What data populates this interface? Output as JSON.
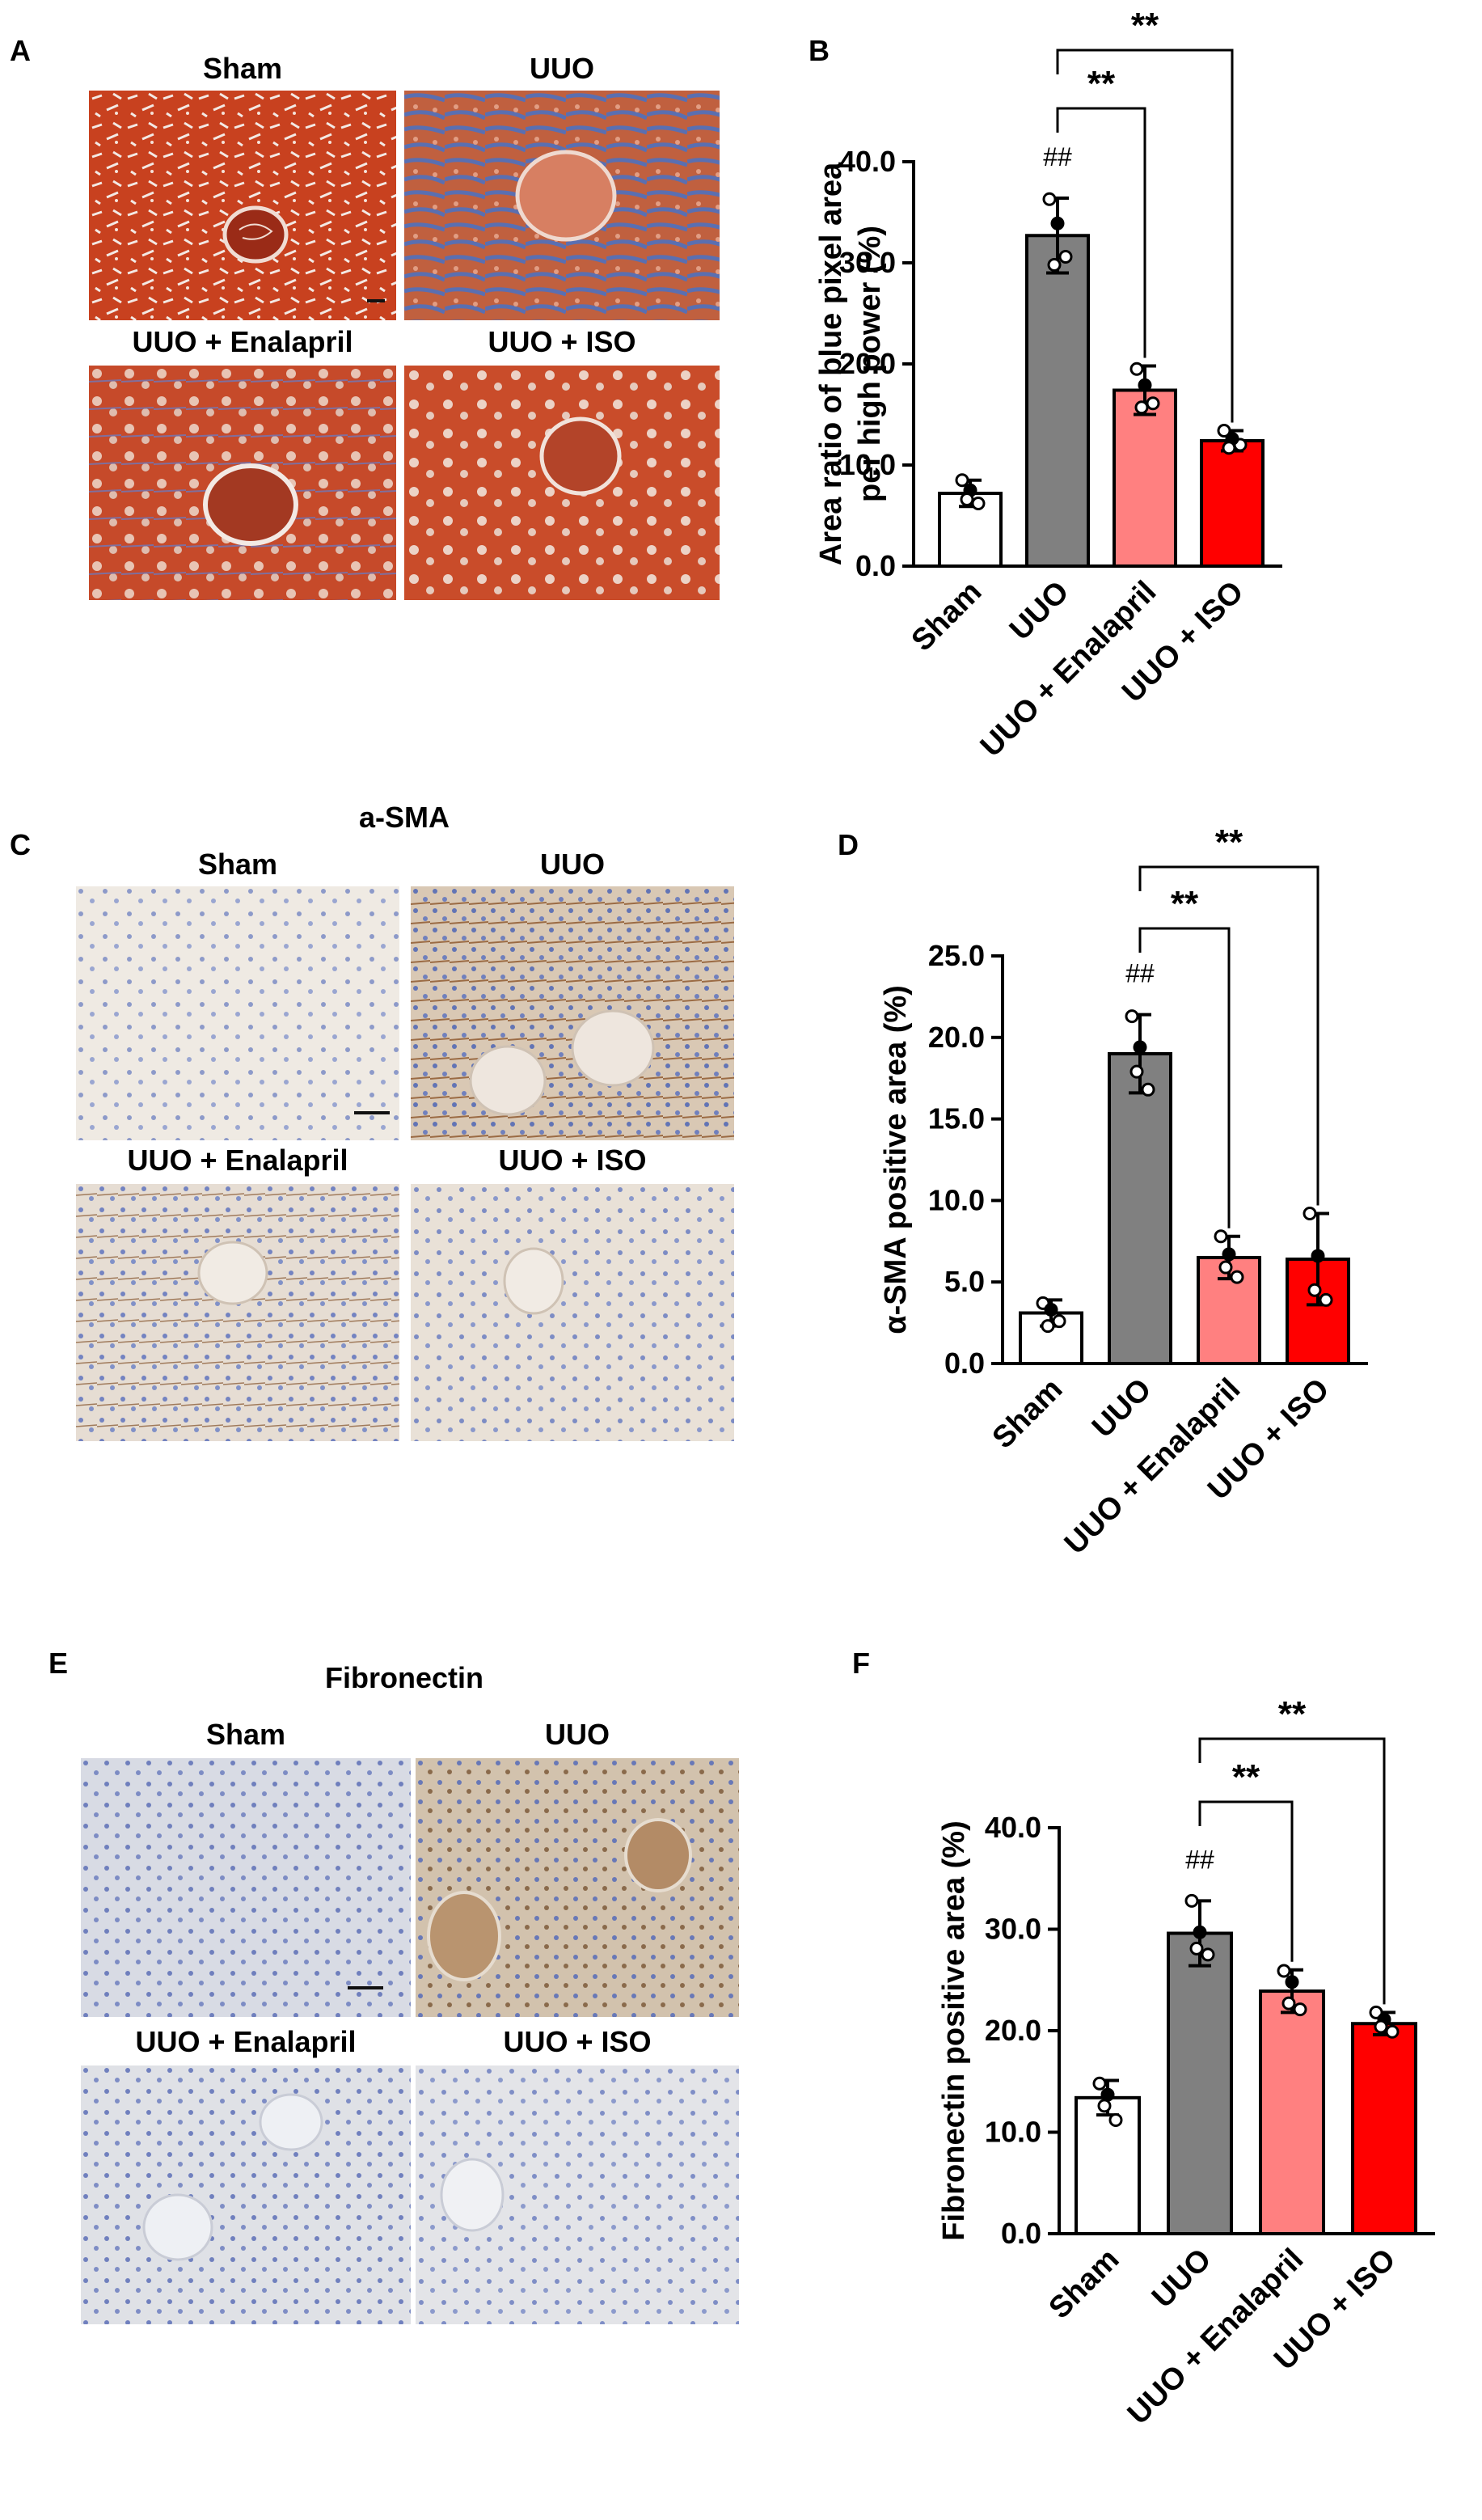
{
  "panels": {
    "A": {
      "letter": "A",
      "labels": [
        "Sham",
        "UUO",
        "UUO + Enalapril",
        "UUO + ISO"
      ]
    },
    "B": {
      "letter": "B"
    },
    "C": {
      "letter": "C",
      "title": "a-SMA",
      "labels": [
        "Sham",
        "UUO",
        "UUO + Enalapril",
        "UUO + ISO"
      ]
    },
    "D": {
      "letter": "D"
    },
    "E": {
      "letter": "E",
      "title": "Fibronectin",
      "labels": [
        "Sham",
        "UUO",
        "UUO + Enalapril",
        "UUO + ISO"
      ]
    },
    "F": {
      "letter": "F"
    }
  },
  "chart_data": [
    {
      "panel": "B",
      "type": "bar",
      "categories": [
        "Sham",
        "UUO",
        "UUO + Enalapril",
        "UUO + ISO"
      ],
      "values": [
        7.2,
        32.7,
        17.4,
        12.4
      ],
      "errors": [
        1.3,
        3.7,
        2.4,
        1.0
      ],
      "points": [
        [
          8.5,
          6.2,
          7.5,
          6.6
        ],
        [
          36.3,
          30.6,
          33.9,
          29.8
        ],
        [
          19.5,
          16.1,
          17.9,
          15.7
        ],
        [
          13.4,
          12.0,
          12.6,
          11.7
        ]
      ],
      "colors": [
        "#ffffff",
        "#808080",
        "#ff8080",
        "#ff0000"
      ],
      "ylabel": "Area ratio of blue pixel area per high power (%)",
      "ylim": [
        0,
        40
      ],
      "yticks": [
        "0.0",
        "10.0",
        "20.0",
        "30.0",
        "40.0"
      ],
      "annotations": {
        "hash": "##",
        "sig": "**"
      }
    },
    {
      "panel": "D",
      "type": "bar",
      "categories": [
        "Sham",
        "UUO",
        "UUO + Enalapril",
        "UUO + ISO"
      ],
      "values": [
        3.1,
        19.0,
        6.5,
        6.4
      ],
      "errors": [
        0.8,
        2.4,
        1.3,
        2.8
      ],
      "points": [
        [
          3.7,
          2.6,
          3.3,
          2.3
        ],
        [
          21.3,
          16.8,
          19.4,
          17.9
        ],
        [
          7.8,
          5.3,
          6.7,
          5.9
        ],
        [
          9.2,
          3.9,
          6.6,
          4.5
        ]
      ],
      "colors": [
        "#ffffff",
        "#808080",
        "#ff8080",
        "#ff0000"
      ],
      "ylabel": "α-SMA positive area (%)",
      "ylim": [
        0,
        25
      ],
      "yticks": [
        "0.0",
        "5.0",
        "10.0",
        "15.0",
        "20.0",
        "25.0"
      ],
      "annotations": {
        "hash": "##",
        "sig": "**"
      }
    },
    {
      "panel": "F",
      "type": "bar",
      "categories": [
        "Sham",
        "UUO",
        "UUO + Enalapril",
        "UUO + ISO"
      ],
      "values": [
        13.4,
        29.6,
        23.9,
        20.7
      ],
      "errors": [
        1.7,
        3.2,
        2.1,
        1.1
      ],
      "points": [
        [
          14.8,
          11.2,
          13.7,
          12.6
        ],
        [
          32.8,
          27.5,
          29.7,
          28.1
        ],
        [
          25.9,
          22.1,
          24.8,
          22.7
        ],
        [
          21.8,
          19.9,
          21.1,
          20.4
        ]
      ],
      "colors": [
        "#ffffff",
        "#808080",
        "#ff8080",
        "#ff0000"
      ],
      "ylabel": "Fibronectin positive area (%)",
      "ylim": [
        0,
        40
      ],
      "yticks": [
        "0.0",
        "10.0",
        "20.0",
        "30.0",
        "40.0"
      ],
      "annotations": {
        "hash": "##",
        "sig": "**"
      }
    }
  ]
}
